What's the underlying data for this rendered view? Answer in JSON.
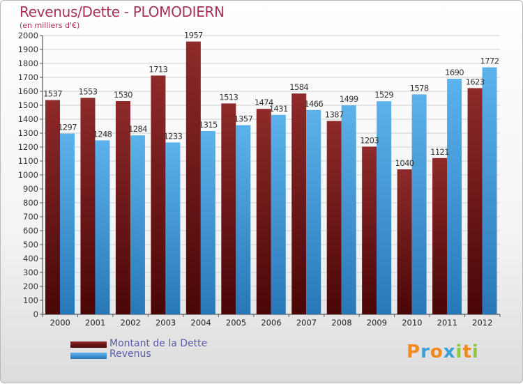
{
  "header": {
    "title": "Revenus/Dette - PLOMODIERN",
    "subtitle": "(en milliers d'€)"
  },
  "brand": {
    "letters": [
      "P",
      "r",
      "o",
      "x",
      "i",
      "t",
      "i"
    ],
    "colors": [
      "#f08a1c",
      "#3aa0d8",
      "#f08a1c",
      "#3aa0d8",
      "#8cc63e",
      "#f08a1c",
      "#8cc63e"
    ]
  },
  "chart_data": {
    "type": "bar",
    "categories": [
      "2000",
      "2001",
      "2002",
      "2003",
      "2004",
      "2005",
      "2006",
      "2007",
      "2008",
      "2009",
      "2010",
      "2011",
      "2012"
    ],
    "series": [
      {
        "name": "Montant de la Dette",
        "color": "#7a1e1e",
        "values": [
          1537,
          1553,
          1530,
          1713,
          1957,
          1513,
          1474,
          1584,
          1387,
          1203,
          1040,
          1121,
          1623
        ]
      },
      {
        "name": "Revenus",
        "color": "#4aa4e0",
        "values": [
          1297,
          1248,
          1284,
          1233,
          1315,
          1357,
          1431,
          1466,
          1499,
          1529,
          1578,
          1690,
          1772
        ]
      }
    ],
    "ylim": [
      0,
      2000
    ],
    "ytick_step": 100,
    "grid": true,
    "legend": "bottom-left"
  }
}
